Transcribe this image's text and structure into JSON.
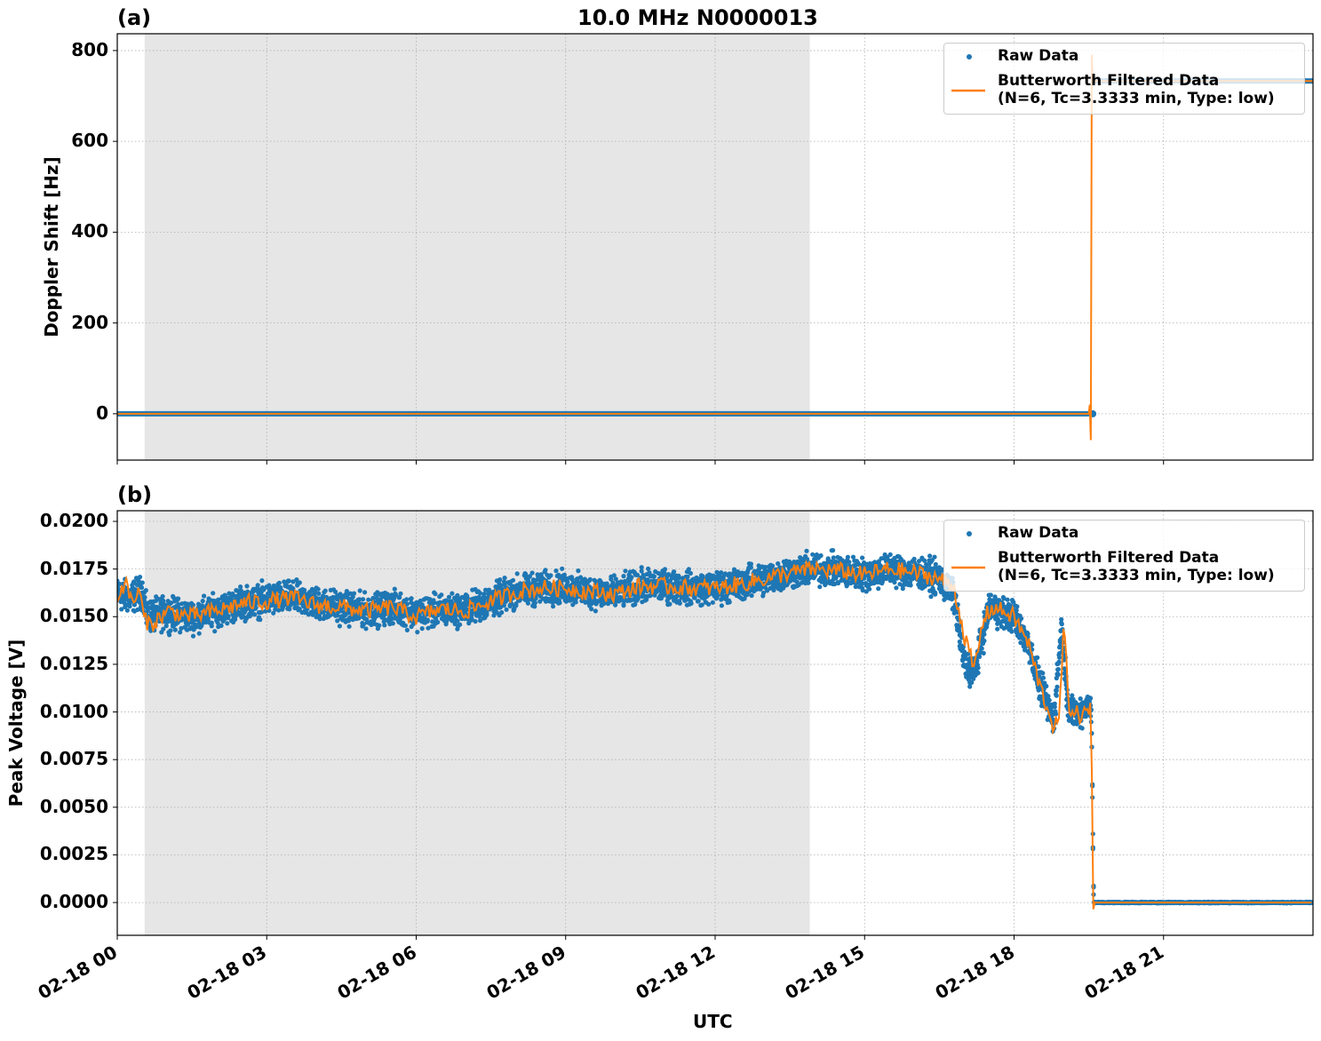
{
  "figure": {
    "title": "10.0 MHz N0000013",
    "xlabel": "UTC"
  },
  "chart_data": [
    {
      "panel": "(a)",
      "type": "line",
      "title": "10.0 MHz N0000013",
      "xlabel": "",
      "ylabel": "Doppler Shift [Hz]",
      "x_ticks": [
        "02-18 00",
        "02-18 03",
        "02-18 06",
        "02-18 09",
        "02-18 12",
        "02-18 15",
        "02-18 18",
        "02-18 21"
      ],
      "x_range_hours": [
        0,
        24
      ],
      "ylim": [
        -102,
        837
      ],
      "y_ticks": [
        0,
        200,
        400,
        600,
        800
      ],
      "grid": true,
      "legend_position": "upper right",
      "shaded_region_hours": [
        0.55,
        13.9
      ],
      "shaded_color": "#e6e6e6",
      "series": [
        {
          "name": "Raw Data",
          "style": "scatter",
          "color": "#1f77b4",
          "x_hours": [
            0,
            3,
            6,
            9,
            12,
            15,
            18,
            19.55,
            19.6,
            21,
            24
          ],
          "values": [
            0,
            0,
            0,
            0,
            0,
            0,
            0,
            0,
            733,
            733,
            733
          ]
        },
        {
          "name": "Butterworth Filtered Data\n(N=6, Tc=3.3333 min, Type: low)",
          "style": "line",
          "color": "#ff7f0e",
          "x_hours": [
            0,
            3,
            6,
            9,
            12,
            15,
            18,
            19.5,
            19.52,
            19.54,
            19.56,
            19.58,
            19.6,
            21,
            24
          ],
          "values": [
            0,
            0,
            0,
            0,
            0,
            0,
            0,
            0,
            20,
            -58,
            790,
            733,
            733,
            733,
            733
          ]
        }
      ]
    },
    {
      "panel": "(b)",
      "type": "line",
      "title": "",
      "xlabel": "UTC",
      "ylabel": "Peak Voltage [V]",
      "x_ticks": [
        "02-18 00",
        "02-18 03",
        "02-18 06",
        "02-18 09",
        "02-18 12",
        "02-18 15",
        "02-18 18",
        "02-18 21"
      ],
      "x_range_hours": [
        0,
        24
      ],
      "ylim": [
        -0.00172,
        0.02056
      ],
      "y_ticks": [
        "0.0000",
        "0.0025",
        "0.0050",
        "0.0075",
        "0.0100",
        "0.0125",
        "0.0150",
        "0.0175",
        "0.0200"
      ],
      "grid": true,
      "legend_position": "upper right",
      "shaded_region_hours": [
        0.55,
        13.9
      ],
      "shaded_color": "#e6e6e6",
      "series": [
        {
          "name": "Raw Data",
          "style": "scatter",
          "color": "#1f77b4",
          "x_hours": [
            0,
            0.25,
            0.5,
            0.6,
            1.0,
            1.5,
            2.0,
            2.5,
            3.0,
            3.5,
            4.0,
            4.5,
            5.0,
            5.5,
            6.0,
            6.5,
            7.0,
            7.5,
            8.0,
            8.5,
            9.0,
            9.5,
            10.0,
            10.5,
            11.0,
            11.5,
            12.0,
            12.5,
            13.0,
            13.5,
            14.0,
            14.5,
            15.0,
            15.5,
            16.0,
            16.5,
            16.8,
            17.0,
            17.2,
            17.5,
            18.0,
            18.3,
            18.5,
            18.8,
            18.95,
            19.1,
            19.3,
            19.55,
            19.6,
            21,
            24
          ],
          "values_center": [
            0.0162,
            0.016,
            0.0163,
            0.015,
            0.0152,
            0.015,
            0.0153,
            0.0157,
            0.0159,
            0.016,
            0.0157,
            0.0155,
            0.0153,
            0.0155,
            0.0152,
            0.0153,
            0.0154,
            0.0158,
            0.0163,
            0.0165,
            0.0165,
            0.0163,
            0.0162,
            0.0166,
            0.0166,
            0.0165,
            0.0165,
            0.0167,
            0.017,
            0.0173,
            0.0175,
            0.0174,
            0.0172,
            0.0175,
            0.0173,
            0.017,
            0.016,
            0.0125,
            0.012,
            0.0155,
            0.015,
            0.0135,
            0.0115,
            0.0095,
            0.0145,
            0.01,
            0.01,
            0.0105,
            0.0,
            0.0,
            0.0
          ],
          "spread": 0.0012
        },
        {
          "name": "Butterworth Filtered Data\n(N=6, Tc=3.3333 min, Type: low)",
          "style": "line",
          "color": "#ff7f0e",
          "x_hours": [
            0,
            0.15,
            0.3,
            0.45,
            0.55,
            0.7,
            1.0,
            1.5,
            2.0,
            2.5,
            3.0,
            3.5,
            4.0,
            4.5,
            5.0,
            5.5,
            6.0,
            6.5,
            7.0,
            7.5,
            8.0,
            8.5,
            9.0,
            9.5,
            10.0,
            10.5,
            11.0,
            11.5,
            12.0,
            12.5,
            13.0,
            13.5,
            14.0,
            14.5,
            15.0,
            15.5,
            16.0,
            16.5,
            16.8,
            17.0,
            17.2,
            17.4,
            17.6,
            18.0,
            18.3,
            18.5,
            18.8,
            18.9,
            19.0,
            19.1,
            19.3,
            19.5,
            19.55,
            19.58,
            19.6,
            21,
            24
          ],
          "values": [
            0.016,
            0.0168,
            0.0158,
            0.0163,
            0.0148,
            0.0146,
            0.0153,
            0.015,
            0.0153,
            0.0157,
            0.0158,
            0.016,
            0.0156,
            0.0155,
            0.0153,
            0.0155,
            0.015,
            0.0154,
            0.0153,
            0.0158,
            0.0163,
            0.0165,
            0.0165,
            0.0163,
            0.0162,
            0.0166,
            0.0166,
            0.0165,
            0.0165,
            0.0167,
            0.017,
            0.0173,
            0.0175,
            0.0174,
            0.0172,
            0.0175,
            0.0173,
            0.017,
            0.0165,
            0.014,
            0.0122,
            0.015,
            0.0155,
            0.015,
            0.0135,
            0.0115,
            0.0092,
            0.0095,
            0.0145,
            0.0103,
            0.0098,
            0.01,
            0.0108,
            -0.0007,
            0.0,
            0.0,
            0.0
          ]
        }
      ]
    }
  ],
  "legend": {
    "raw_label": "Raw Data",
    "filtered_label_line1": "Butterworth Filtered Data",
    "filtered_label_line2": "(N=6, Tc=3.3333 min, Type: low)"
  }
}
